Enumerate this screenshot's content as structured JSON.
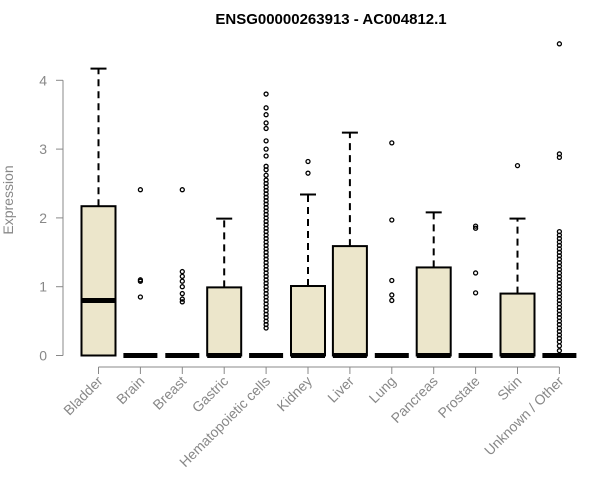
{
  "chart_data": {
    "type": "box",
    "title": "ENSG00000263913 - AC004812.1",
    "xlabel": "",
    "ylabel": "Expression",
    "ylim": [
      0,
      4.5
    ],
    "yticks": [
      0,
      1,
      2,
      3,
      4
    ],
    "grid": false,
    "colors": {
      "box_fill": "#ece6cb",
      "stroke": "#000000",
      "axis_text": "#888888"
    },
    "categories": [
      "Bladder",
      "Brain",
      "Breast",
      "Gastric",
      "Hematopoietic cells",
      "Kidney",
      "Liver",
      "Lung",
      "Pancreas",
      "Prostate",
      "Skin",
      "Unknown / Other"
    ],
    "boxes": [
      {
        "category": "Bladder",
        "q1": 0,
        "median": 0.8,
        "q3": 2.17,
        "whisker_low": 0,
        "whisker_high": 4.17,
        "outliers": []
      },
      {
        "category": "Brain",
        "q1": 0,
        "median": 0,
        "q3": 0,
        "whisker_low": 0,
        "whisker_high": 0,
        "outliers": [
          2.41,
          1.1,
          1.08,
          0.85
        ]
      },
      {
        "category": "Breast",
        "q1": 0,
        "median": 0,
        "q3": 0,
        "whisker_low": 0,
        "whisker_high": 0,
        "outliers": [
          2.41,
          1.22,
          1.15,
          1.08,
          1.0,
          0.9,
          0.82,
          0.78
        ]
      },
      {
        "category": "Gastric",
        "q1": 0,
        "median": 0,
        "q3": 0.99,
        "whisker_low": 0,
        "whisker_high": 1.99,
        "outliers": []
      },
      {
        "category": "Hematopoietic cells",
        "q1": 0,
        "median": 0,
        "q3": 0,
        "whisker_low": 0,
        "whisker_high": 0,
        "outliers": [
          3.8,
          3.6,
          3.5,
          3.38,
          3.3,
          3.12,
          3.0,
          2.9,
          2.75,
          2.7,
          2.62,
          2.55,
          2.5,
          2.45,
          2.4,
          2.35,
          2.3,
          2.25,
          2.2,
          2.15,
          2.1,
          2.05,
          2.0,
          1.95,
          1.9,
          1.85,
          1.8,
          1.75,
          1.7,
          1.65,
          1.6,
          1.55,
          1.5,
          1.45,
          1.4,
          1.35,
          1.3,
          1.25,
          1.2,
          1.15,
          1.1,
          1.05,
          1.0,
          0.95,
          0.9,
          0.85,
          0.8,
          0.75,
          0.7,
          0.65,
          0.6,
          0.55,
          0.5,
          0.45,
          0.4
        ]
      },
      {
        "category": "Kidney",
        "q1": 0,
        "median": 0,
        "q3": 1.01,
        "whisker_low": 0,
        "whisker_high": 2.34,
        "outliers": [
          2.82,
          2.65
        ]
      },
      {
        "category": "Liver",
        "q1": 0,
        "median": 0,
        "q3": 1.59,
        "whisker_low": 0,
        "whisker_high": 3.24,
        "outliers": []
      },
      {
        "category": "Lung",
        "q1": 0,
        "median": 0,
        "q3": 0,
        "whisker_low": 0,
        "whisker_high": 0,
        "outliers": [
          3.09,
          1.97,
          1.09,
          0.88,
          0.8
        ]
      },
      {
        "category": "Pancreas",
        "q1": 0,
        "median": 0,
        "q3": 1.28,
        "whisker_low": 0,
        "whisker_high": 2.08,
        "outliers": []
      },
      {
        "category": "Prostate",
        "q1": 0,
        "median": 0,
        "q3": 0,
        "whisker_low": 0,
        "whisker_high": 0,
        "outliers": [
          1.88,
          1.85,
          1.2,
          0.91
        ]
      },
      {
        "category": "Skin",
        "q1": 0,
        "median": 0,
        "q3": 0.9,
        "whisker_low": 0,
        "whisker_high": 1.99,
        "outliers": [
          2.76
        ]
      },
      {
        "category": "Unknown / Other",
        "q1": 0,
        "median": 0,
        "q3": 0,
        "whisker_low": 0,
        "whisker_high": 0,
        "outliers": [
          4.53,
          2.93,
          2.88,
          1.8,
          1.75,
          1.7,
          1.65,
          1.6,
          1.55,
          1.5,
          1.45,
          1.4,
          1.35,
          1.3,
          1.25,
          1.2,
          1.15,
          1.1,
          1.05,
          1.0,
          0.95,
          0.9,
          0.85,
          0.8,
          0.75,
          0.7,
          0.65,
          0.6,
          0.55,
          0.5,
          0.45,
          0.4,
          0.35,
          0.3,
          0.25,
          0.2,
          0.14,
          0.07
        ]
      }
    ]
  }
}
